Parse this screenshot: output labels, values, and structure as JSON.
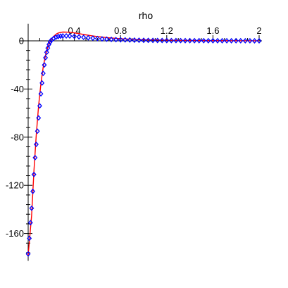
{
  "chart_data": {
    "type": "line",
    "xlabel": "rho",
    "ylabel": "",
    "xlim": [
      0,
      2
    ],
    "ylim": [
      -178,
      6
    ],
    "x_ticks": [
      0.4,
      0.8,
      1.2,
      1.6,
      2
    ],
    "x_tick_labels": [
      "0.4",
      "0.8",
      "1.2",
      "1.6",
      "2"
    ],
    "y_ticks": [
      0,
      -40,
      -80,
      -120,
      -160
    ],
    "y_tick_labels": [
      "0",
      "-40",
      "-80",
      "-120",
      "-160"
    ],
    "grid": false,
    "colors": {
      "line": "#ff0000",
      "points": "#0000ff",
      "axes": "#000000"
    },
    "series": [
      {
        "style": "line",
        "x": [
          0.0,
          0.03,
          0.05,
          0.07,
          0.09,
          0.11,
          0.13,
          0.15,
          0.17,
          0.19,
          0.21,
          0.23,
          0.25,
          0.27,
          0.3,
          0.35,
          0.4,
          0.45,
          0.5,
          0.55,
          0.6,
          0.7,
          0.8,
          0.9,
          1.0,
          1.2,
          1.4,
          1.6,
          1.8,
          2.0
        ],
        "y": [
          -178,
          -145,
          -108,
          -78,
          -54,
          -36,
          -22,
          -12,
          -5,
          -0.5,
          2.5,
          4.5,
          6.0,
          6.8,
          7.3,
          7.2,
          6.6,
          5.8,
          5.0,
          4.2,
          3.5,
          2.5,
          1.8,
          1.3,
          0.9,
          0.5,
          0.3,
          0.2,
          0.1,
          0.05
        ]
      },
      {
        "style": "points",
        "x": [
          0.0,
          0.01,
          0.02,
          0.03,
          0.04,
          0.05,
          0.06,
          0.07,
          0.08,
          0.09,
          0.1,
          0.11,
          0.12,
          0.13,
          0.14,
          0.15,
          0.16,
          0.17,
          0.18,
          0.19,
          0.2,
          0.22,
          0.24,
          0.26,
          0.28,
          0.3,
          0.33,
          0.36,
          0.4,
          0.44,
          0.48,
          0.52,
          0.56,
          0.6,
          0.64,
          0.68,
          0.72,
          0.76,
          0.8,
          0.84,
          0.88,
          0.92,
          0.96,
          1.0,
          1.04,
          1.08,
          1.12,
          1.16,
          1.2,
          1.24,
          1.28,
          1.32,
          1.36,
          1.4,
          1.44,
          1.48,
          1.52,
          1.56,
          1.6,
          1.64,
          1.68,
          1.72,
          1.76,
          1.8,
          1.84,
          1.88,
          1.92,
          1.96,
          2.0
        ],
        "y": [
          -177,
          -164,
          -151,
          -139,
          -125,
          -111,
          -97,
          -86,
          -75,
          -64,
          -54,
          -44,
          -35,
          -27,
          -20,
          -14,
          -9.5,
          -6,
          -3,
          -1,
          0.5,
          2,
          3,
          3.6,
          3.9,
          4.1,
          4.1,
          4.0,
          3.7,
          3.3,
          2.9,
          2.5,
          2.2,
          1.9,
          1.6,
          1.4,
          1.2,
          1.0,
          0.9,
          0.8,
          0.7,
          0.6,
          0.5,
          0.45,
          0.4,
          0.35,
          0.3,
          0.28,
          0.25,
          0.22,
          0.2,
          0.18,
          0.16,
          0.15,
          0.13,
          0.12,
          0.11,
          0.1,
          0.09,
          0.08,
          0.07,
          0.07,
          0.06,
          0.05,
          0.05,
          0.04,
          0.04,
          0.03,
          0.03
        ]
      }
    ]
  }
}
